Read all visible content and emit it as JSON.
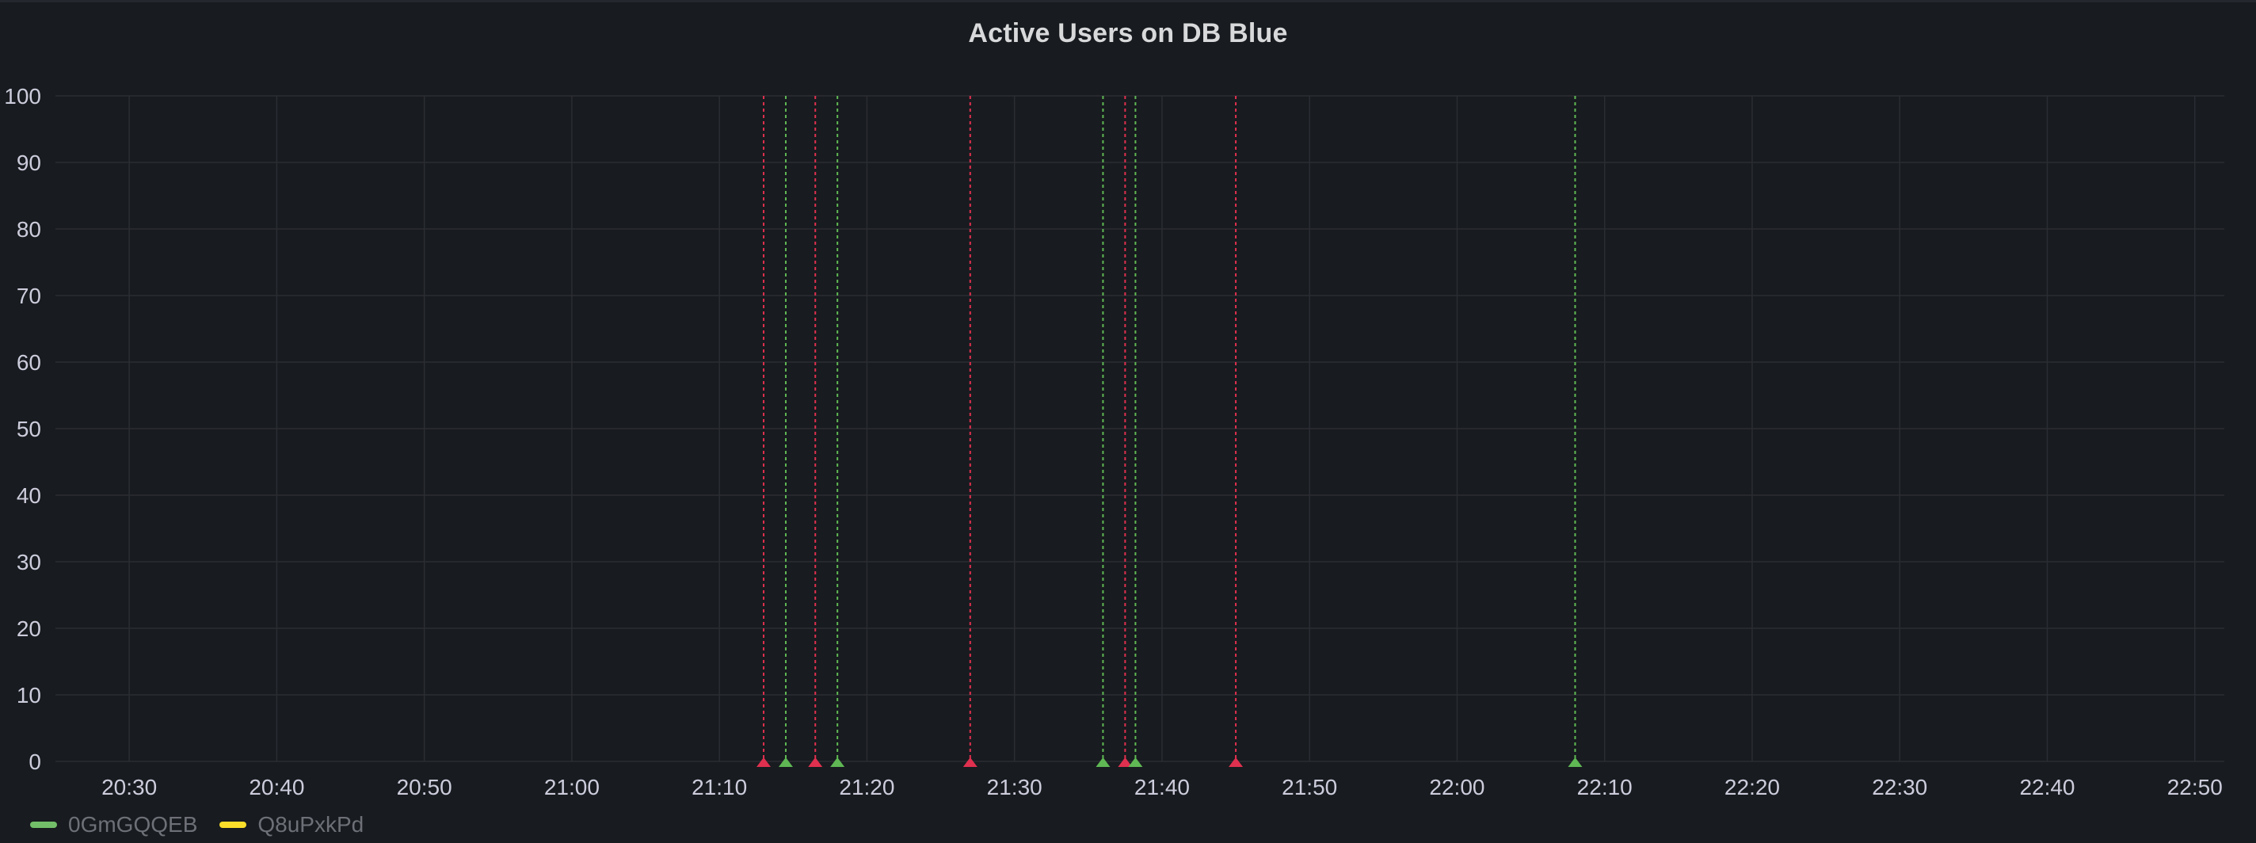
{
  "panel": {
    "title": "Active Users on DB Blue"
  },
  "colors": {
    "background": "#181b1f",
    "grid": "#2a2d33",
    "axis_text": "#ccccdc",
    "annotation_red": "#e0304f",
    "annotation_green": "#5fb854",
    "series_green": "#73bf69",
    "series_yellow": "#fade2a"
  },
  "chart_data": {
    "type": "line",
    "title": "Active Users on DB Blue",
    "xlabel": "",
    "ylabel": "",
    "ylim": [
      0,
      100
    ],
    "xlim": [
      "20:25",
      "22:52"
    ],
    "x_ticks": [
      "20:30",
      "20:40",
      "20:50",
      "21:00",
      "21:10",
      "21:20",
      "21:30",
      "21:40",
      "21:50",
      "22:00",
      "22:10",
      "22:20",
      "22:30",
      "22:40",
      "22:50"
    ],
    "y_ticks": [
      0,
      10,
      20,
      30,
      40,
      50,
      60,
      70,
      80,
      90,
      100
    ],
    "grid": true,
    "legend_position": "bottom-left",
    "series": [
      {
        "name": "0GmGQQEB",
        "color": "#73bf69",
        "values": []
      },
      {
        "name": "Q8uPxkPd",
        "color": "#fade2a",
        "values": []
      }
    ],
    "annotations": [
      {
        "time": "21:13",
        "color": "red"
      },
      {
        "time": "21:14.5",
        "color": "green"
      },
      {
        "time": "21:16.5",
        "color": "red"
      },
      {
        "time": "21:18",
        "color": "green"
      },
      {
        "time": "21:27",
        "color": "red"
      },
      {
        "time": "21:36",
        "color": "green"
      },
      {
        "time": "21:37.5",
        "color": "red"
      },
      {
        "time": "21:38.2",
        "color": "green"
      },
      {
        "time": "21:45",
        "color": "red"
      },
      {
        "time": "22:08",
        "color": "green"
      }
    ]
  }
}
